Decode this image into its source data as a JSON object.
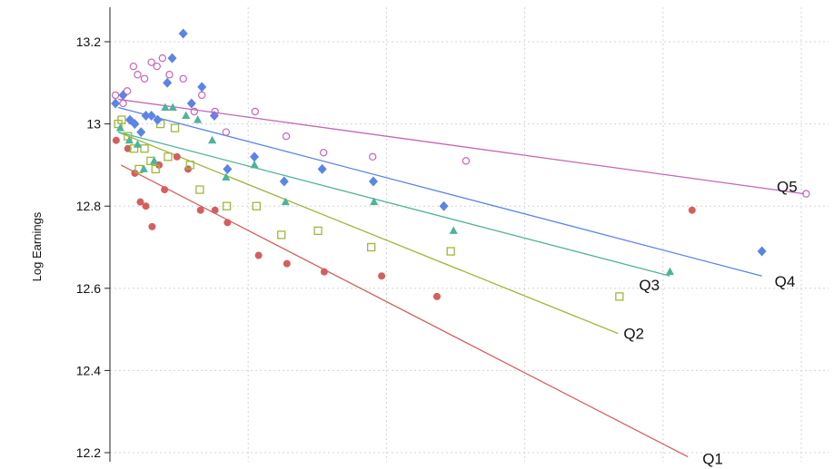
{
  "chart_data": {
    "type": "scatter",
    "title": "",
    "xlabel": "",
    "ylabel": "Log Earnings",
    "xlim": [
      0,
      100
    ],
    "ylim": [
      12.2,
      13.25
    ],
    "yticks": [
      12.2,
      12.4,
      12.6,
      12.8,
      13.0,
      13.2
    ],
    "ytick_labels": [
      "12.2",
      "12.4",
      "12.6",
      "12.8",
      "13",
      "13.2"
    ],
    "xticks": [
      0,
      20,
      40,
      60,
      80,
      100
    ],
    "grid": true,
    "legend": "none",
    "series": [
      {
        "name": "Q1",
        "color": "#d55e5e",
        "marker": "circle-filled",
        "points": [
          [
            0.9,
            12.96
          ],
          [
            2.6,
            12.94
          ],
          [
            3.6,
            12.88
          ],
          [
            4.4,
            12.81
          ],
          [
            5.2,
            12.8
          ],
          [
            6.1,
            12.75
          ],
          [
            7.1,
            12.9
          ],
          [
            7.9,
            12.84
          ],
          [
            9.7,
            12.92
          ],
          [
            11.3,
            12.89
          ],
          [
            13.1,
            12.79
          ],
          [
            15.2,
            12.79
          ],
          [
            17.0,
            12.76
          ],
          [
            21.5,
            12.68
          ],
          [
            25.6,
            12.66
          ],
          [
            31.0,
            12.64
          ],
          [
            39.3,
            12.63
          ],
          [
            47.3,
            12.58
          ],
          [
            84.2,
            12.79
          ]
        ],
        "fit": [
          [
            1.6,
            12.9
          ],
          [
            83.6,
            12.19
          ]
        ]
      },
      {
        "name": "Q2",
        "color": "#9db83b",
        "marker": "square-open",
        "points": [
          [
            1.2,
            13.0
          ],
          [
            1.7,
            13.01
          ],
          [
            2.6,
            12.97
          ],
          [
            3.5,
            12.94
          ],
          [
            4.2,
            12.89
          ],
          [
            5.0,
            12.94
          ],
          [
            5.9,
            12.91
          ],
          [
            6.6,
            12.89
          ],
          [
            7.3,
            13.0
          ],
          [
            8.4,
            12.92
          ],
          [
            9.4,
            12.99
          ],
          [
            11.6,
            12.9
          ],
          [
            13.0,
            12.84
          ],
          [
            16.9,
            12.8
          ],
          [
            21.2,
            12.8
          ],
          [
            24.8,
            12.73
          ],
          [
            30.1,
            12.74
          ],
          [
            37.8,
            12.7
          ],
          [
            49.3,
            12.69
          ],
          [
            73.7,
            12.58
          ]
        ],
        "fit": [
          [
            1.2,
            12.98
          ],
          [
            73.5,
            12.49
          ]
        ]
      },
      {
        "name": "Q3",
        "color": "#4fb39b",
        "marker": "triangle-filled",
        "points": [
          [
            1.5,
            12.99
          ],
          [
            2.8,
            12.96
          ],
          [
            4.0,
            12.95
          ],
          [
            4.9,
            12.89
          ],
          [
            6.4,
            12.91
          ],
          [
            8.0,
            13.04
          ],
          [
            9.1,
            13.04
          ],
          [
            11.0,
            13.02
          ],
          [
            12.7,
            13.01
          ],
          [
            14.8,
            12.96
          ],
          [
            16.8,
            12.87
          ],
          [
            20.9,
            12.9
          ],
          [
            25.4,
            12.81
          ],
          [
            38.2,
            12.81
          ],
          [
            49.7,
            12.74
          ],
          [
            81.0,
            12.64
          ]
        ],
        "fit": [
          [
            1.2,
            12.98
          ],
          [
            81.0,
            12.63
          ]
        ]
      },
      {
        "name": "Q4",
        "color": "#5b84e6",
        "marker": "diamond-filled",
        "points": [
          [
            0.8,
            13.05
          ],
          [
            1.9,
            13.07
          ],
          [
            2.9,
            13.01
          ],
          [
            3.6,
            13.0
          ],
          [
            4.5,
            12.98
          ],
          [
            5.2,
            13.02
          ],
          [
            6.0,
            13.02
          ],
          [
            6.9,
            13.01
          ],
          [
            8.3,
            13.1
          ],
          [
            9.0,
            13.16
          ],
          [
            10.6,
            13.22
          ],
          [
            11.8,
            13.05
          ],
          [
            13.3,
            13.09
          ],
          [
            15.1,
            13.02
          ],
          [
            17.0,
            12.89
          ],
          [
            20.9,
            12.92
          ],
          [
            25.2,
            12.86
          ],
          [
            30.7,
            12.89
          ],
          [
            38.1,
            12.86
          ],
          [
            48.3,
            12.8
          ],
          [
            94.3,
            12.69
          ]
        ],
        "fit": [
          [
            1.2,
            13.04
          ],
          [
            94.3,
            12.63
          ]
        ]
      },
      {
        "name": "Q5",
        "color": "#c665b6",
        "marker": "circle-open",
        "points": [
          [
            0.8,
            13.07
          ],
          [
            1.9,
            13.05
          ],
          [
            2.5,
            13.08
          ],
          [
            3.4,
            13.14
          ],
          [
            4.0,
            13.12
          ],
          [
            5.0,
            13.11
          ],
          [
            6.0,
            13.15
          ],
          [
            6.8,
            13.14
          ],
          [
            7.6,
            13.16
          ],
          [
            8.6,
            13.12
          ],
          [
            10.6,
            13.11
          ],
          [
            12.2,
            13.03
          ],
          [
            13.3,
            13.07
          ],
          [
            15.2,
            13.03
          ],
          [
            16.8,
            12.98
          ],
          [
            21.0,
            13.03
          ],
          [
            25.5,
            12.97
          ],
          [
            30.9,
            12.93
          ],
          [
            38.0,
            12.92
          ],
          [
            51.5,
            12.91
          ],
          [
            100.7,
            12.83
          ]
        ],
        "fit": [
          [
            1.2,
            13.06
          ],
          [
            100.4,
            12.83
          ]
        ]
      }
    ]
  }
}
